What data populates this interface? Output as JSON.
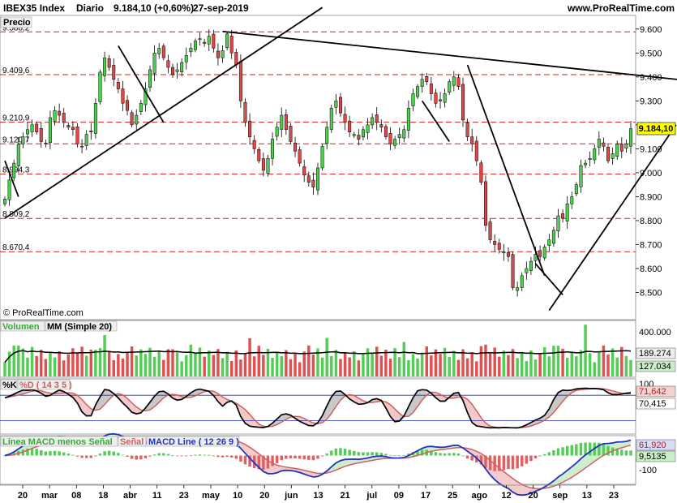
{
  "header": {
    "instrument": "IBEX35 Index",
    "period": "Diario",
    "quote": "9.184,10 (+0,60%)",
    "date": "27-sep-2019",
    "site": "www.ProRealTime.com"
  },
  "colors": {
    "up": "#4fcf4f",
    "down": "#e04848",
    "up_volume": "#55cc55",
    "down_volume": "#e05050",
    "ma_line": "#000000",
    "percent_k": "#000000",
    "percent_d": "#d06060",
    "macd_line": "#2233bb",
    "signal_line": "#d06060",
    "histogram_up": "#55cc55",
    "histogram_down": "#e06060",
    "level_line": "#cc2222",
    "badge": "#ffff00"
  },
  "chart_data": [
    {
      "type": "candlestick",
      "title": "Precio",
      "last_price_label": "9.184,10",
      "y_ticks": [
        "9.600",
        "9.500",
        "9.400",
        "9.300",
        "9.200",
        "9.100",
        "9.000",
        "8.900",
        "8.800",
        "8.700",
        "8.600",
        "8.500"
      ],
      "ylim": [
        8400,
        9640
      ],
      "x_ticks": [
        "20",
        "mar",
        "08",
        "18",
        "abr",
        "11",
        "23",
        "may",
        "10",
        "20",
        "jun",
        "13",
        "21",
        "jul",
        "09",
        "17",
        "25",
        "ago",
        "12",
        "20",
        "sep",
        "13",
        "23"
      ],
      "levels": [
        {
          "label": "9.588,2",
          "value": 9588.2
        },
        {
          "label": "9.409,6",
          "value": 9409.6
        },
        {
          "label": "9.210,9",
          "value": 9210.9
        },
        {
          "label": "9.120,7",
          "value": 9120.7
        },
        {
          "label": "8.994,3",
          "value": 8994.3
        },
        {
          "label": "8.809,2",
          "value": 8809.2
        },
        {
          "label": "8.670,4",
          "value": 8670.4
        }
      ],
      "trendlines": [
        {
          "from": [
            0,
            8810
          ],
          "to": [
            70,
            9690
          ]
        },
        {
          "from": [
            48,
            9590
          ],
          "to": [
            158,
            9370
          ]
        },
        {
          "from": [
            25,
            9530
          ],
          "to": [
            35,
            9210
          ]
        },
        {
          "from": [
            102,
            9450
          ],
          "to": [
            119,
            8570
          ]
        },
        {
          "from": [
            120,
            8425
          ],
          "to": [
            148,
            9200
          ]
        },
        {
          "from": [
            92,
            9300
          ],
          "to": [
            98,
            9130
          ]
        },
        {
          "from": [
            117,
            8620
          ],
          "to": [
            123,
            8490
          ]
        },
        {
          "from": [
            157,
            9205
          ],
          "to": [
            164,
            9050
          ]
        },
        {
          "from": [
            0,
            9050
          ],
          "to": [
            3,
            8900
          ]
        }
      ],
      "closes": [
        8890,
        8970,
        9040,
        9120,
        9150,
        9180,
        9200,
        9170,
        9130,
        9120,
        9230,
        9260,
        9240,
        9210,
        9190,
        9180,
        9120,
        9110,
        9160,
        9170,
        9290,
        9420,
        9480,
        9440,
        9390,
        9350,
        9290,
        9260,
        9200,
        9240,
        9290,
        9350,
        9430,
        9500,
        9520,
        9480,
        9440,
        9410,
        9430,
        9460,
        9490,
        9520,
        9550,
        9560,
        9540,
        9570,
        9520,
        9480,
        9510,
        9580,
        9500,
        9450,
        9300,
        9210,
        9150,
        9100,
        9050,
        9010,
        9060,
        9140,
        9190,
        9240,
        9180,
        9130,
        9090,
        9040,
        8990,
        8960,
        8940,
        9020,
        9110,
        9190,
        9270,
        9300,
        9250,
        9210,
        9170,
        9160,
        9140,
        9180,
        9200,
        9230,
        9210,
        9190,
        9150,
        9120,
        9140,
        9160,
        9180,
        9270,
        9330,
        9360,
        9390,
        9380,
        9330,
        9290,
        9300,
        9330,
        9380,
        9400,
        9360,
        9220,
        9150,
        9120,
        9050,
        8960,
        8780,
        8720,
        8700,
        8680,
        8670,
        8650,
        8520,
        8520,
        8570,
        8600,
        8630,
        8660,
        8650,
        8690,
        8720,
        8760,
        8820,
        8810,
        8870,
        8900,
        8950,
        9030,
        9040,
        9060,
        9100,
        9140,
        9110,
        9050,
        9080,
        9120,
        9090,
        9120,
        9184.1
      ]
    },
    {
      "type": "bar",
      "title": "Volumen",
      "overlay": "MM (Simple 20)",
      "y_ticks": [
        "400.000"
      ],
      "ylim": [
        0,
        420000
      ],
      "ma_label": "189.274",
      "current_label": "127.034"
    },
    {
      "type": "line",
      "title": "%K",
      "series_labels": [
        "%D ( 14 3 5 )"
      ],
      "ylim": [
        -10,
        115
      ],
      "y_ticks": [
        "100"
      ],
      "d_label": "71,642",
      "k_label": "70,415",
      "overbought": 80,
      "oversold": 20
    },
    {
      "type": "line",
      "title": "Linea MACD menos Señal",
      "series_labels": [
        "Señal",
        "MACD Line ( 12 26 9 )"
      ],
      "ylim": [
        -130,
        85
      ],
      "y_ticks": [
        "-100"
      ],
      "macd_label": "61,920",
      "hist_label": "9,5135"
    }
  ],
  "watermark": "© ProRealTime.com"
}
